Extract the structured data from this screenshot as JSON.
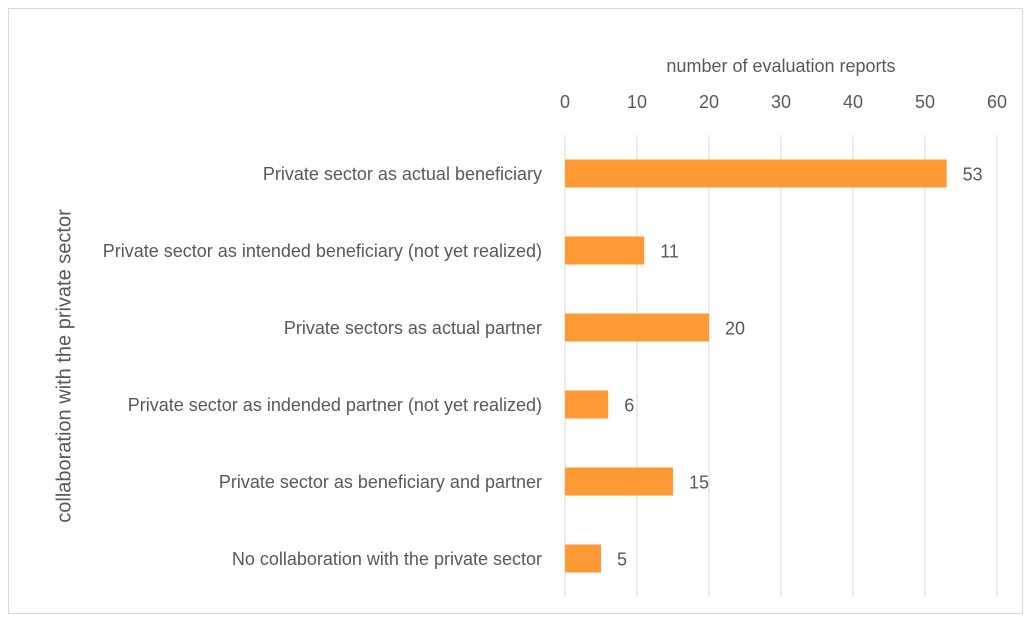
{
  "chart_data": {
    "type": "bar",
    "orientation": "horizontal",
    "x_label": "number of evaluation reports",
    "y_label": "collaboration with the private sector",
    "categories": [
      "Private sector as actual beneficiary",
      "Private sector as intended beneficiary (not yet realized)",
      "Private sectors as actual partner",
      "Private sector as indended partner (not yet realized)",
      "Private sector as beneficiary and partner",
      "No collaboration with the private sector"
    ],
    "values": [
      53,
      11,
      20,
      6,
      15,
      5
    ],
    "color": "#ff9933",
    "xlim": [
      0,
      60
    ],
    "xticks": [
      0,
      10,
      20,
      30,
      40,
      50,
      60
    ],
    "grid": true
  }
}
